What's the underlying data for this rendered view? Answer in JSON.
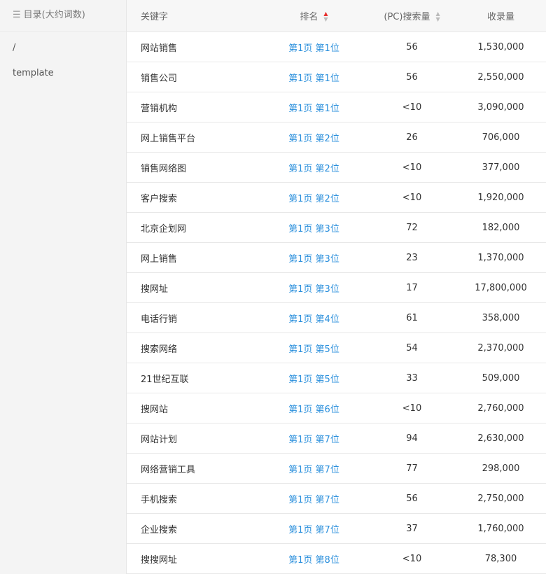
{
  "sidebar": {
    "title": "目录(大约词数)",
    "items": [
      "/",
      "template"
    ]
  },
  "table": {
    "headers": {
      "keyword": "关键字",
      "rank": "排名",
      "search": "(PC)搜索量",
      "indexed": "收录量"
    },
    "sort": {
      "column": "rank",
      "direction": "asc",
      "active_color": "#e8312f"
    },
    "rows": [
      {
        "keyword": "网站销售",
        "rank": "第1页 第1位",
        "search": "56",
        "indexed": "1,530,000"
      },
      {
        "keyword": "销售公司",
        "rank": "第1页 第1位",
        "search": "56",
        "indexed": "2,550,000"
      },
      {
        "keyword": "营销机构",
        "rank": "第1页 第1位",
        "search": "<10",
        "indexed": "3,090,000"
      },
      {
        "keyword": "网上销售平台",
        "rank": "第1页 第2位",
        "search": "26",
        "indexed": "706,000"
      },
      {
        "keyword": "销售网络图",
        "rank": "第1页 第2位",
        "search": "<10",
        "indexed": "377,000"
      },
      {
        "keyword": "客户搜索",
        "rank": "第1页 第2位",
        "search": "<10",
        "indexed": "1,920,000"
      },
      {
        "keyword": "北京企划网",
        "rank": "第1页 第3位",
        "search": "72",
        "indexed": "182,000"
      },
      {
        "keyword": "网上销售",
        "rank": "第1页 第3位",
        "search": "23",
        "indexed": "1,370,000"
      },
      {
        "keyword": "搜网址",
        "rank": "第1页 第3位",
        "search": "17",
        "indexed": "17,800,000"
      },
      {
        "keyword": "电话行销",
        "rank": "第1页 第4位",
        "search": "61",
        "indexed": "358,000"
      },
      {
        "keyword": "搜索网络",
        "rank": "第1页 第5位",
        "search": "54",
        "indexed": "2,370,000"
      },
      {
        "keyword": "21世纪互联",
        "rank": "第1页 第5位",
        "search": "33",
        "indexed": "509,000"
      },
      {
        "keyword": "搜网站",
        "rank": "第1页 第6位",
        "search": "<10",
        "indexed": "2,760,000"
      },
      {
        "keyword": "网站计划",
        "rank": "第1页 第7位",
        "search": "94",
        "indexed": "2,630,000"
      },
      {
        "keyword": "网络营销工具",
        "rank": "第1页 第7位",
        "search": "77",
        "indexed": "298,000"
      },
      {
        "keyword": "手机搜索",
        "rank": "第1页 第7位",
        "search": "56",
        "indexed": "2,750,000"
      },
      {
        "keyword": "企业搜索",
        "rank": "第1页 第7位",
        "search": "37",
        "indexed": "1,760,000"
      },
      {
        "keyword": "搜搜网址",
        "rank": "第1页 第8位",
        "search": "<10",
        "indexed": "78,300"
      }
    ]
  }
}
